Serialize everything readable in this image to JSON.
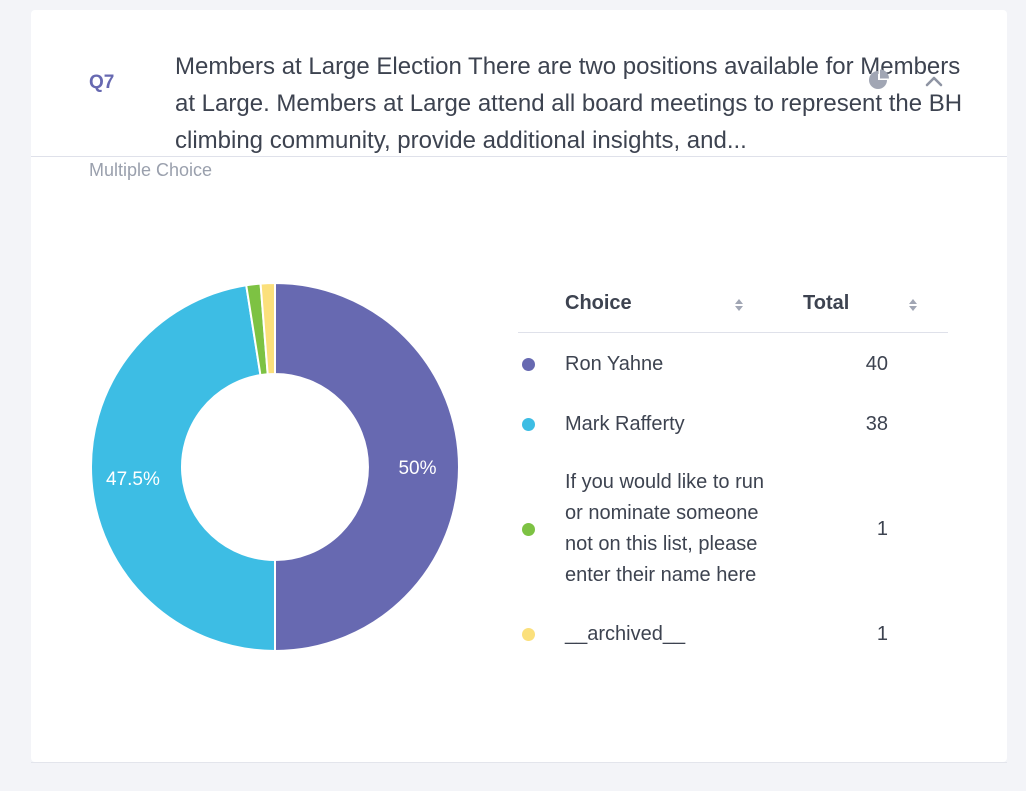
{
  "question": {
    "number": "Q7",
    "title": "Members at Large Election There are two positions available for Members at Large. Members at Large attend all board meetings to represent the BH climbing community, provide additional insights, and...",
    "type": "Multiple Choice"
  },
  "icons": {
    "chart_toggle": "pie-chart-icon",
    "collapse": "chevron-up-icon",
    "sort": "sort-icon"
  },
  "table": {
    "columns": [
      "Choice",
      "Total"
    ],
    "rows": [
      {
        "label": "Ron Yahne",
        "total": "40",
        "color": "#6769b1"
      },
      {
        "label": "Mark Rafferty",
        "total": "38",
        "color": "#3dbde4"
      },
      {
        "label": "If you would like to run or nominate someone not on this list, please enter their name here",
        "total": "1",
        "color": "#7dc243"
      },
      {
        "label": "__archived__",
        "total": "1",
        "color": "#fbe07c"
      }
    ]
  },
  "chart_data": {
    "type": "pie",
    "style": "donut",
    "categories": [
      "Ron Yahne",
      "Mark Rafferty",
      "If you would like to run or nominate someone not on this list, please enter their name here",
      "__archived__"
    ],
    "values": [
      40,
      38,
      1,
      1
    ],
    "colors": [
      "#6769b1",
      "#3dbde4",
      "#7dc243",
      "#fbe07c"
    ],
    "labels": [
      "50%",
      "47.5%",
      "",
      ""
    ],
    "title": "",
    "legend": "right"
  }
}
